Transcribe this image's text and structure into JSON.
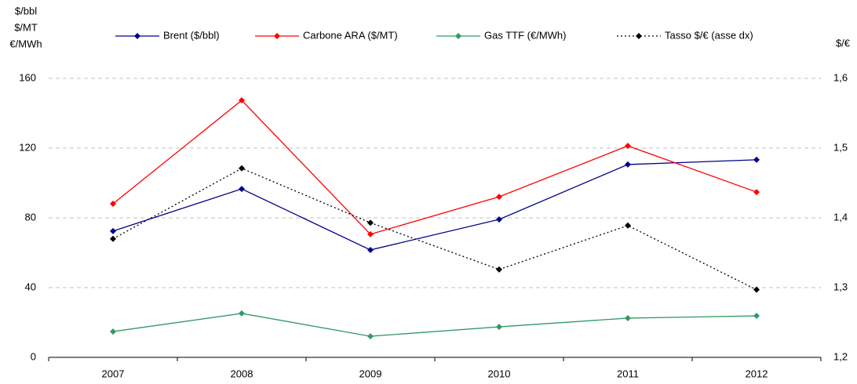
{
  "chart_data": {
    "type": "line",
    "ylabel": [
      "$/bbl",
      "$/MT",
      "€/MWh"
    ],
    "y2label": "$/€",
    "categories": [
      "2007",
      "2008",
      "2009",
      "2010",
      "2011",
      "2012"
    ],
    "series": [
      {
        "name": "Brent ($/bbl)",
        "color": "#00008b",
        "style": "solid",
        "values": [
          72.4,
          96.6,
          61.6,
          79.1,
          110.6,
          113.3
        ]
      },
      {
        "name": "Carbone ARA ($/MT)",
        "color": "#ff0000",
        "style": "solid",
        "values": [
          88.1,
          147.4,
          70.6,
          92.1,
          121.3,
          94.8
        ]
      },
      {
        "name": "Gas TTF (€/MWh)",
        "color": "#339966",
        "style": "solid",
        "values": [
          14.8,
          25.2,
          12.1,
          17.5,
          22.5,
          23.8
        ]
      },
      {
        "name": "Tasso $/€ (asse dx)",
        "color": "#000000",
        "style": "dotted",
        "axis": "y2",
        "values": [
          1.37,
          1.471,
          1.393,
          1.326,
          1.389,
          1.297
        ]
      }
    ],
    "ylim": [
      0,
      160
    ],
    "yticks": [
      0,
      40,
      80,
      120,
      160
    ],
    "y2lim": [
      1.2,
      1.6
    ],
    "y2ticks": [
      {
        "value": 1.2,
        "label": "1,2"
      },
      {
        "value": 1.3,
        "label": "1,3"
      },
      {
        "value": 1.4,
        "label": "1,4"
      },
      {
        "value": 1.5,
        "label": "1,5"
      },
      {
        "value": 1.6,
        "label": "1,6"
      }
    ],
    "grid": true,
    "legend": "top"
  }
}
